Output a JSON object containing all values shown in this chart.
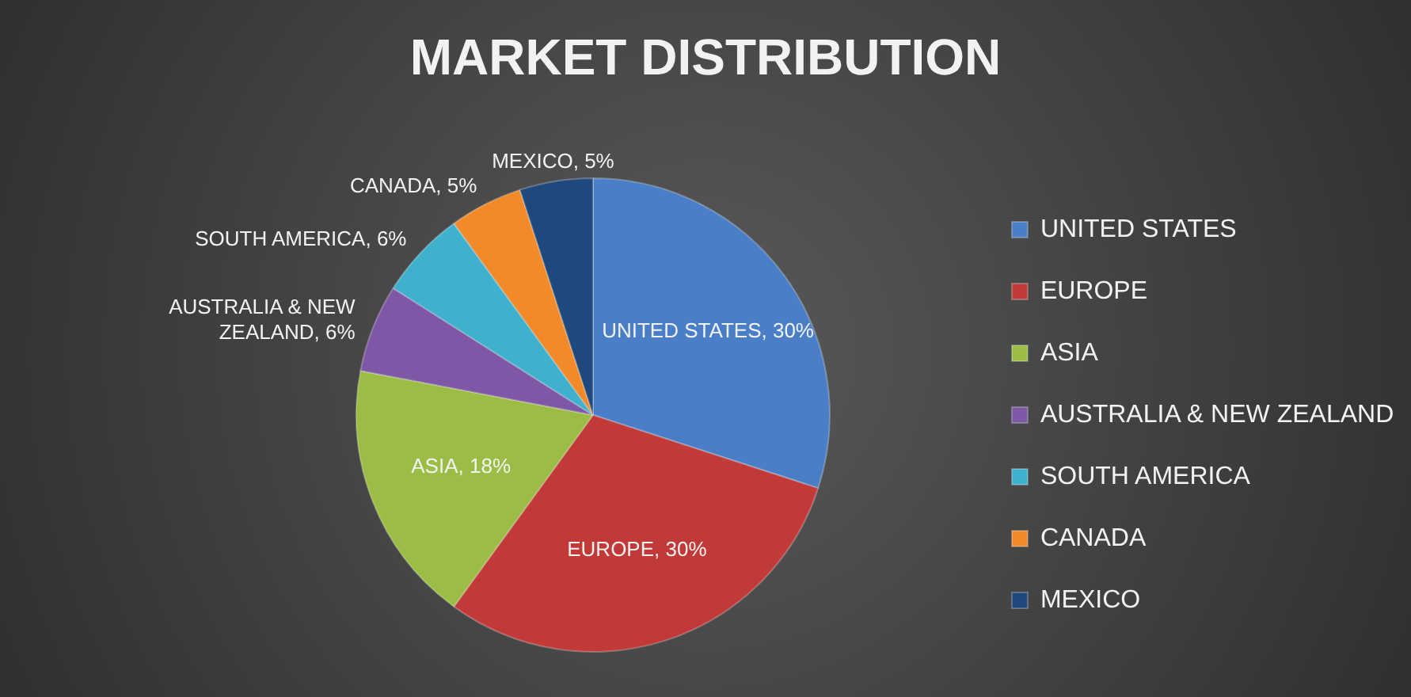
{
  "chart_data": {
    "type": "pie",
    "title": "MARKET DISTRIBUTION",
    "categories": [
      "UNITED STATES",
      "EUROPE",
      "ASIA",
      "AUSTRALIA & NEW ZEALAND",
      "SOUTH AMERICA",
      "CANADA",
      "MEXICO"
    ],
    "values": [
      30,
      30,
      18,
      6,
      6,
      5,
      5
    ],
    "colors": [
      "#4a7fc8",
      "#c23a37",
      "#9cbd45",
      "#7e57a6",
      "#3fb1cf",
      "#f28a2a",
      "#1f497d"
    ],
    "value_labels": [
      "UNITED STATES, 30%",
      "EUROPE, 30%",
      "ASIA, 18%",
      "AUSTRALIA & NEW ZEALAND, 6%",
      "SOUTH AMERICA, 6%",
      "CANADA, 5%",
      "MEXICO, 5%"
    ],
    "legend": "right"
  }
}
